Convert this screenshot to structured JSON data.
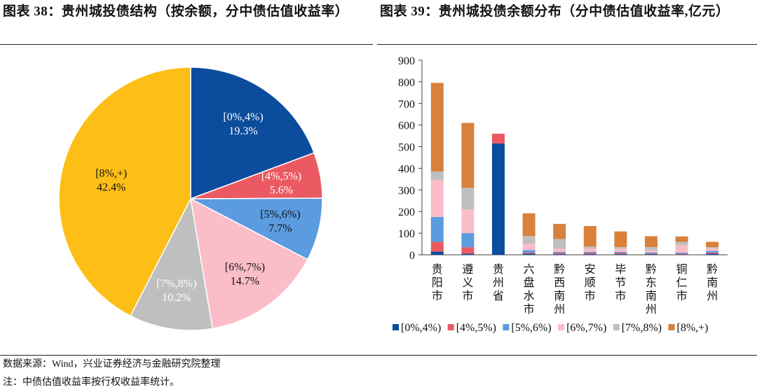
{
  "left_title": "图表 38：贵州城投债结构（按余额，分中债估值收益率）",
  "right_title": "图表 39：贵州城投债余额分布（分中债估值收益率,亿元）",
  "source_note": "数据来源：Wind，兴业证券经济与金融研究院整理",
  "footnote": "注：中债估值收益率按行权收益率统计。",
  "colors": {
    "s0": "#0b4c9c",
    "s1": "#eb5a62",
    "s2": "#5b9be0",
    "s3": "#fbbdc8",
    "s4": "#bfbfbf",
    "s5_bar": "#d9803a",
    "s5_pie": "#fdbe16"
  },
  "chart_data": [
    {
      "type": "pie",
      "title": "贵州城投债结构（按余额，分中债估值收益率）",
      "slices": [
        {
          "label": "[0%,4%)",
          "value": 19.3,
          "value_label": "19.3%"
        },
        {
          "label": "[4%,5%)",
          "value": 5.6,
          "value_label": "5.6%"
        },
        {
          "label": "[5%,6%)",
          "value": 7.7,
          "value_label": "7.7%"
        },
        {
          "label": "[6%,7%)",
          "value": 14.7,
          "value_label": "14.7%"
        },
        {
          "label": "[7%,8%)",
          "value": 10.2,
          "value_label": "10.2%"
        },
        {
          "label": "[8%,+)",
          "value": 42.4,
          "value_label": "42.4%"
        }
      ]
    },
    {
      "type": "bar",
      "stacked": true,
      "title": "贵州城投债余额分布（分中债估值收益率,亿元）",
      "categories": [
        "贵阳市",
        "遵义市",
        "贵州省",
        "六盘水市",
        "黔西南州",
        "安顺市",
        "毕节市",
        "黔东南州",
        "铜仁市",
        "黔南州"
      ],
      "ylim": [
        0,
        900
      ],
      "yticks": [
        0,
        100,
        200,
        300,
        400,
        500,
        600,
        700,
        800,
        900
      ],
      "legend_position": "bottom",
      "series": [
        {
          "name": "[0%,4%)",
          "values": [
            15,
            5,
            515,
            5,
            3,
            3,
            3,
            3,
            2,
            5
          ]
        },
        {
          "name": "[4%,5%)",
          "values": [
            45,
            30,
            45,
            5,
            5,
            5,
            5,
            3,
            3,
            5
          ]
        },
        {
          "name": "[5%,6%)",
          "values": [
            115,
            65,
            0,
            12,
            5,
            5,
            5,
            5,
            5,
            8
          ]
        },
        {
          "name": "[6%,7%)",
          "values": [
            170,
            110,
            0,
            30,
            15,
            15,
            15,
            10,
            35,
            12
          ]
        },
        {
          "name": "[7%,8%)",
          "values": [
            40,
            100,
            0,
            35,
            45,
            10,
            8,
            15,
            15,
            5
          ]
        },
        {
          "name": "[8%,+)",
          "values": [
            410,
            300,
            0,
            105,
            70,
            95,
            72,
            50,
            25,
            25
          ]
        }
      ]
    }
  ]
}
